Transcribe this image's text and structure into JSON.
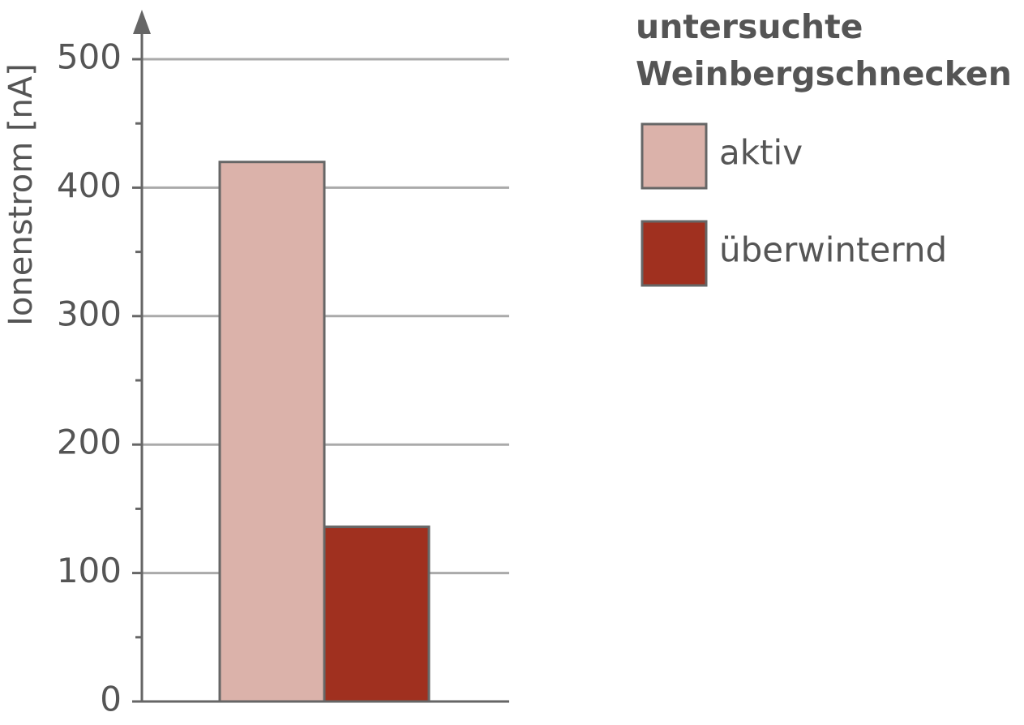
{
  "chart_data": {
    "type": "bar",
    "y_label": "Ionenstrom [nA]",
    "legend_title": "untersuchte Weinbergschnecken",
    "categories": [
      null
    ],
    "series": [
      {
        "name": "aktiv",
        "color": "#dbb2aa",
        "values": [
          420
        ]
      },
      {
        "name": "überwinternd",
        "color": "#a0301f",
        "values": [
          136
        ]
      }
    ],
    "ylim": [
      0,
      500
    ],
    "yticks": [
      0,
      100,
      200,
      300,
      400,
      500
    ],
    "grid": true
  }
}
